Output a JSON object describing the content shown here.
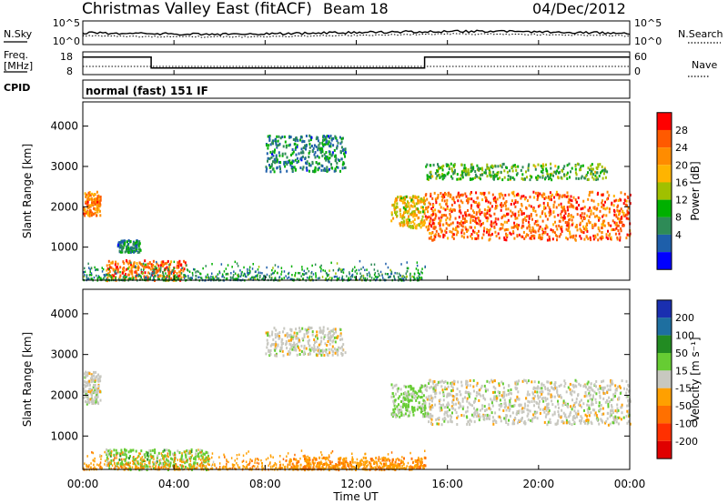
{
  "header": {
    "title": "Christmas Valley East (fitACF)",
    "beam": "Beam 18",
    "date": "04/Dec/2012"
  },
  "nsky_panel": {
    "left_label": "N.Sky",
    "left_ticks": [
      "10^5",
      "10^0"
    ],
    "right_ticks": [
      "10^5",
      "10^0"
    ],
    "right_label": "N.Search"
  },
  "freq_panel": {
    "left_label_1": "Freq.",
    "left_label_2": "[MHz]",
    "left_ticks": [
      "18",
      "8"
    ],
    "right_ticks": [
      "60",
      "0"
    ],
    "right_label": "Nave"
  },
  "cpid_panel": {
    "label": "CPID",
    "mode": "normal (fast) 151 IF"
  },
  "x_axis": {
    "ticks": [
      "00:00",
      "04:00",
      "08:00",
      "12:00",
      "16:00",
      "20:00",
      "00:00"
    ],
    "title": "Time UT"
  },
  "power_panel": {
    "ylabel": "Slant Range [km]",
    "yticks": [
      "4000",
      "3000",
      "2000",
      "1000"
    ],
    "cbar_label": "Power [dB]",
    "cbar_ticks": [
      "28",
      "24",
      "20",
      "16",
      "12",
      "8",
      "4"
    ],
    "colors": [
      "#ff0000",
      "#ff5a00",
      "#ff8c00",
      "#ffb400",
      "#a0c000",
      "#00b000",
      "#2e8b57",
      "#1e5faa",
      "#0000ff"
    ]
  },
  "velocity_panel": {
    "ylabel": "Slant Range [km]",
    "yticks": [
      "4000",
      "3000",
      "2000",
      "1000"
    ],
    "cbar_label": "Velocity [m s⁻¹]",
    "cbar_ticks": [
      "200",
      "100",
      "50",
      "15",
      "-15",
      "-50",
      "-100",
      "-200"
    ],
    "colors": [
      "#1a2fb0",
      "#1e6fa0",
      "#228b22",
      "#66cc33",
      "#c8c8c0",
      "#ffa000",
      "#ff7000",
      "#ff3000",
      "#e00000"
    ]
  },
  "chart_data": {
    "type": "heatmap",
    "x_range": [
      "00:00",
      "24:00"
    ],
    "y_range_km": [
      180,
      4600
    ],
    "panels": [
      {
        "name": "Power [dB]",
        "color_range": [
          0,
          30
        ],
        "features": [
          {
            "t_start": "00:00",
            "t_end": "00:45",
            "range_km": [
              1800,
              2400
            ],
            "value": 22
          },
          {
            "t_start": "01:00",
            "t_end": "04:30",
            "range_km": [
              200,
              700
            ],
            "value": 24
          },
          {
            "t_start": "01:30",
            "t_end": "02:30",
            "range_km": [
              900,
              1200
            ],
            "value": 8
          },
          {
            "t_start": "08:00",
            "t_end": "11:30",
            "range_km": [
              2900,
              3800
            ],
            "value": 8
          },
          {
            "t_start": "13:30",
            "t_end": "15:00",
            "range_km": [
              1500,
              2300
            ],
            "value": 18
          },
          {
            "t_start": "15:00",
            "t_end": "24:00",
            "range_km": [
              1200,
              2400
            ],
            "value": 24
          },
          {
            "t_start": "15:00",
            "t_end": "23:00",
            "range_km": [
              2700,
              3100
            ],
            "value": 12
          }
        ]
      },
      {
        "name": "Velocity [m s-1]",
        "color_range": [
          -200,
          200
        ],
        "features": [
          {
            "t_start": "00:00",
            "t_end": "00:45",
            "range_km": [
              1800,
              2600
            ],
            "value": 0
          },
          {
            "t_start": "01:00",
            "t_end": "05:30",
            "range_km": [
              200,
              700
            ],
            "value": 40
          },
          {
            "t_start": "08:00",
            "t_end": "11:30",
            "range_km": [
              3000,
              3700
            ],
            "value": 0
          },
          {
            "t_start": "13:30",
            "t_end": "15:00",
            "range_km": [
              1500,
              2300
            ],
            "value": 30
          },
          {
            "t_start": "15:00",
            "t_end": "24:00",
            "range_km": [
              1300,
              2400
            ],
            "value": 0
          },
          {
            "t_start": "09:00",
            "t_end": "15:00",
            "range_km": [
              200,
              500
            ],
            "value": -60
          }
        ]
      }
    ],
    "frequency_mhz": [
      {
        "t_start": "00:00",
        "t_end": "03:00",
        "value": 16
      },
      {
        "t_start": "03:00",
        "t_end": "15:00",
        "value": 11
      },
      {
        "t_start": "15:00",
        "t_end": "24:00",
        "value": 16
      }
    ]
  }
}
